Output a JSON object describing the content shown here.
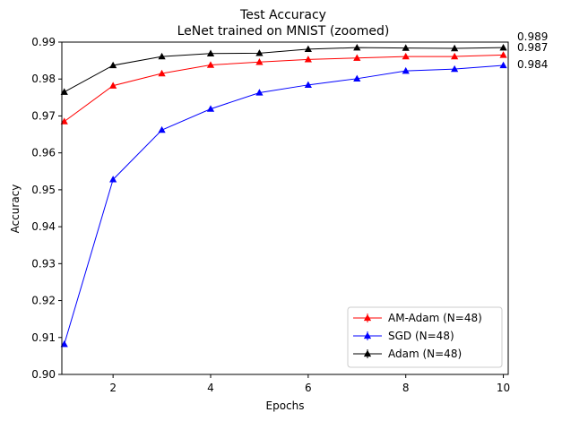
{
  "chart_data": {
    "type": "line",
    "title": "Test Accuracy",
    "subtitle": "LeNet trained on MNIST (zoomed)",
    "xlabel": "Epochs",
    "ylabel": "Accuracy",
    "xlim": [
      0.95,
      10.1
    ],
    "ylim": [
      0.9,
      0.99
    ],
    "xticks": [
      2,
      4,
      6,
      8,
      10
    ],
    "yticks": [
      0.9,
      0.91,
      0.92,
      0.93,
      0.94,
      0.95,
      0.96,
      0.97,
      0.98,
      0.99
    ],
    "ytick_labels": [
      "0.90",
      "0.91",
      "0.92",
      "0.93",
      "0.94",
      "0.95",
      "0.96",
      "0.97",
      "0.98",
      "0.99"
    ],
    "grid": false,
    "legend_position": "lower-right",
    "x": [
      1,
      2,
      3,
      4,
      5,
      6,
      7,
      8,
      9,
      10
    ],
    "series": [
      {
        "name": "AM-Adam (N=48)",
        "color": "#ff0000",
        "values": [
          0.9685,
          0.9782,
          0.9815,
          0.9838,
          0.9846,
          0.9853,
          0.9857,
          0.9861,
          0.9861,
          0.9865
        ],
        "end_label": "0.987"
      },
      {
        "name": "SGD (N=48)",
        "color": "#0000ff",
        "values": [
          0.9082,
          0.9528,
          0.9662,
          0.9719,
          0.9763,
          0.9784,
          0.9801,
          0.9822,
          0.9827,
          0.9837
        ],
        "end_label": "0.984"
      },
      {
        "name": "Adam (N=48)",
        "color": "#000000",
        "values": [
          0.9765,
          0.9837,
          0.9861,
          0.9869,
          0.987,
          0.9881,
          0.9885,
          0.9884,
          0.9883,
          0.9885
        ],
        "end_label": "0.989"
      }
    ]
  }
}
